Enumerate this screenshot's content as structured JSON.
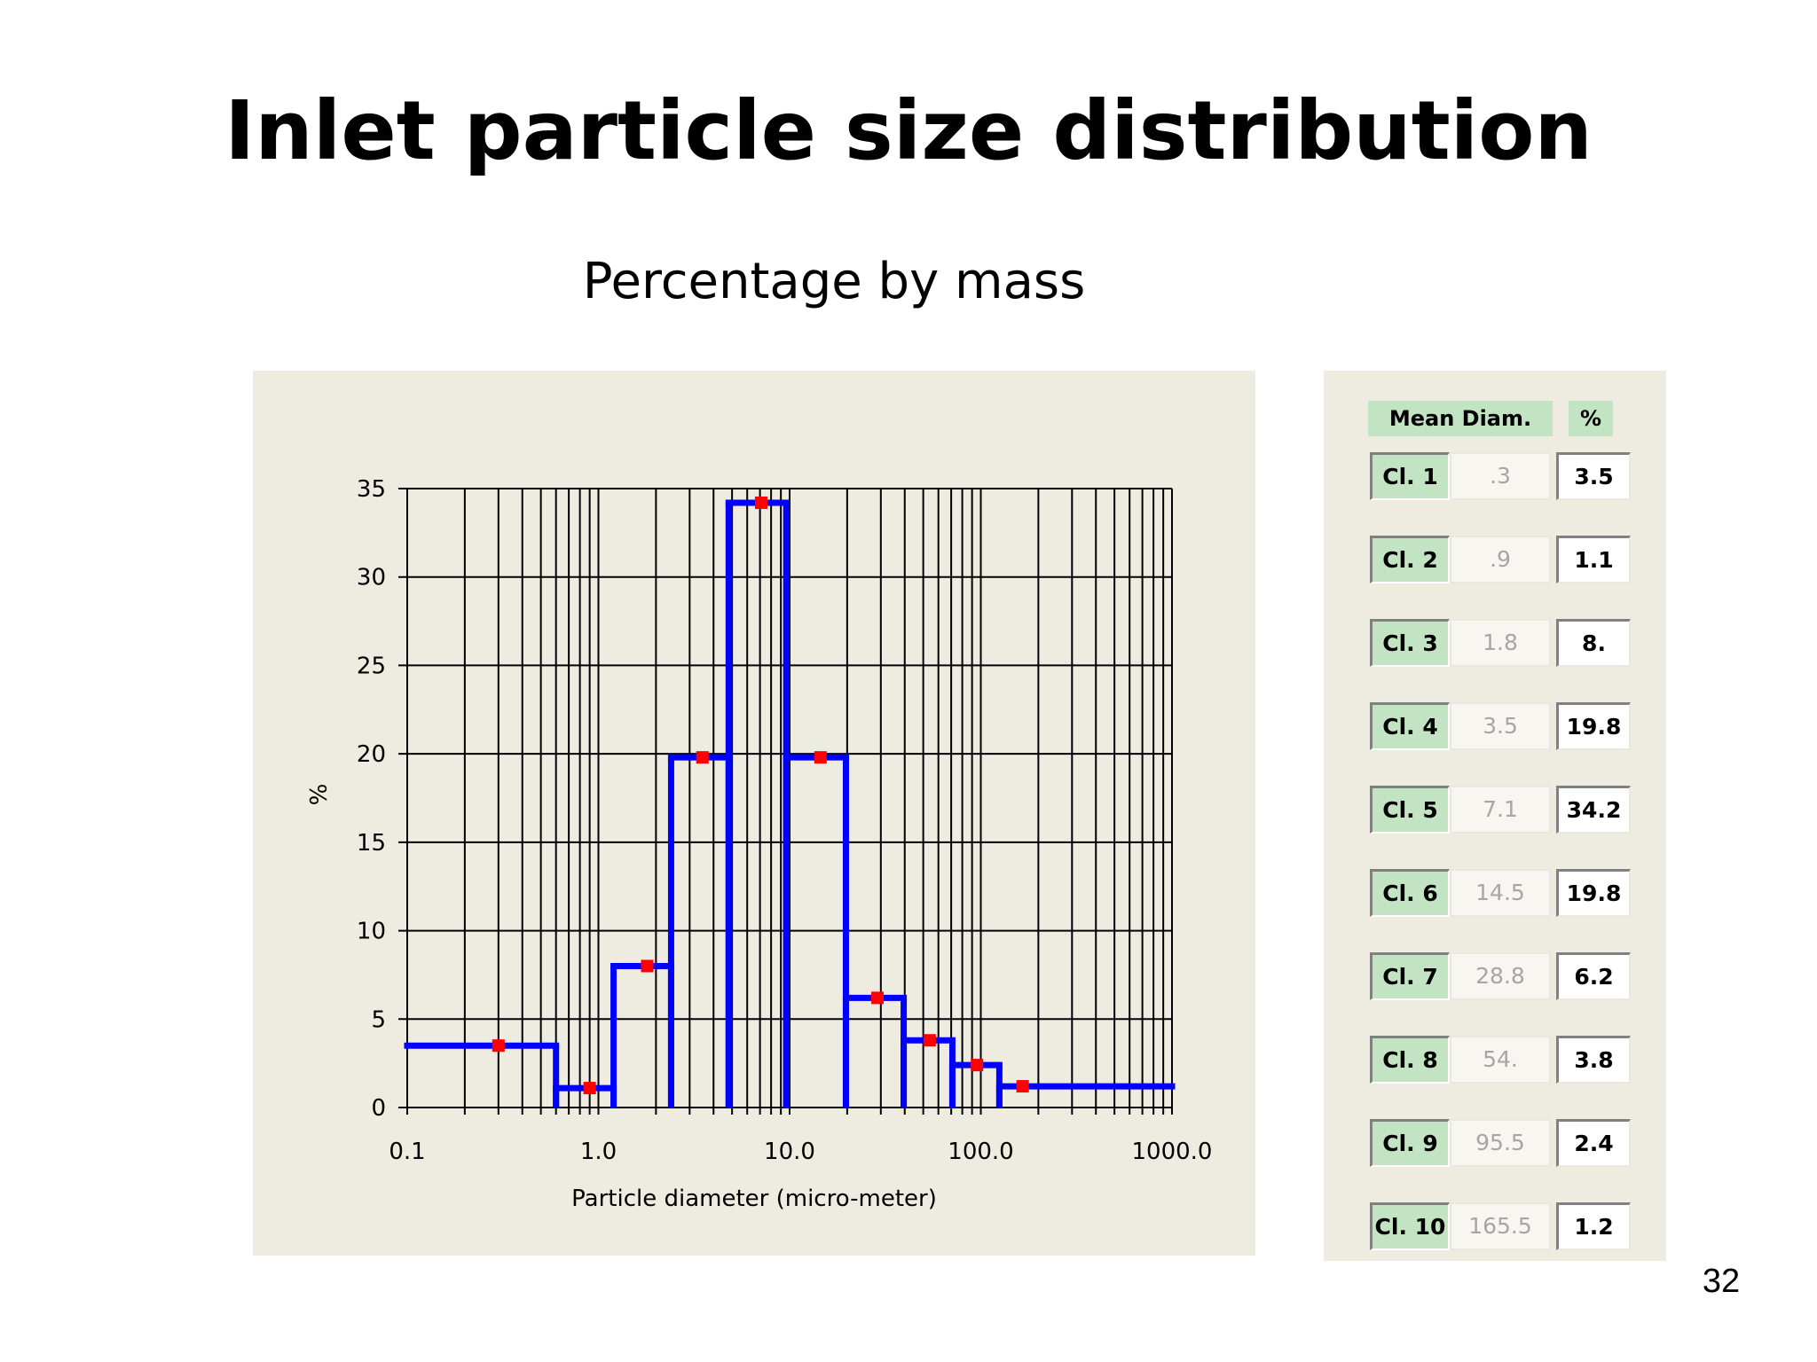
{
  "slide": {
    "title": "Inlet particle size distribution",
    "subtitle": "Percentage by mass",
    "page_number": "32"
  },
  "chart_data": {
    "type": "bar",
    "subtype": "histogram-step",
    "xlabel": "Particle diameter (micro-meter)",
    "ylabel": "%",
    "x_scale": "log",
    "xlim": [
      0.1,
      1000
    ],
    "ylim": [
      0,
      35
    ],
    "x_ticks": [
      "0.1",
      "1.0",
      "10.0",
      "100.0",
      "1000.0"
    ],
    "y_ticks": [
      "0",
      "5",
      "10",
      "15",
      "20",
      "25",
      "30",
      "35"
    ],
    "grid": true,
    "bins": [
      {
        "from": 0.1,
        "to": 0.6,
        "value": 3.5
      },
      {
        "from": 0.6,
        "to": 1.2,
        "value": 1.1
      },
      {
        "from": 1.2,
        "to": 2.4,
        "value": 8.0
      },
      {
        "from": 2.4,
        "to": 4.8,
        "value": 19.8
      },
      {
        "from": 4.8,
        "to": 9.6,
        "value": 34.2
      },
      {
        "from": 9.6,
        "to": 19.7,
        "value": 19.8
      },
      {
        "from": 19.7,
        "to": 39.5,
        "value": 6.2
      },
      {
        "from": 39.5,
        "to": 71,
        "value": 3.8
      },
      {
        "from": 71,
        "to": 125,
        "value": 2.4
      },
      {
        "from": 125,
        "to": 1000,
        "value": 1.2
      }
    ],
    "points": [
      {
        "x": 0.3,
        "y": 3.5
      },
      {
        "x": 0.9,
        "y": 1.1
      },
      {
        "x": 1.8,
        "y": 8.0
      },
      {
        "x": 3.5,
        "y": 19.8
      },
      {
        "x": 7.1,
        "y": 34.2
      },
      {
        "x": 14.5,
        "y": 19.8
      },
      {
        "x": 28.8,
        "y": 6.2
      },
      {
        "x": 54,
        "y": 3.8
      },
      {
        "x": 95.5,
        "y": 2.4
      },
      {
        "x": 165.5,
        "y": 1.2
      }
    ],
    "colors": {
      "bars": "#0000ff",
      "points": "#ff0000",
      "grid": "#000000"
    }
  },
  "table": {
    "header_diam": "Mean Diam.",
    "header_pct": "%",
    "rows": [
      {
        "label": "Cl. 1",
        "diam": ".3",
        "pct": "3.5"
      },
      {
        "label": "Cl. 2",
        "diam": ".9",
        "pct": "1.1"
      },
      {
        "label": "Cl. 3",
        "diam": "1.8",
        "pct": "8."
      },
      {
        "label": "Cl. 4",
        "diam": "3.5",
        "pct": "19.8"
      },
      {
        "label": "Cl. 5",
        "diam": "7.1",
        "pct": "34.2"
      },
      {
        "label": "Cl. 6",
        "diam": "14.5",
        "pct": "19.8"
      },
      {
        "label": "Cl. 7",
        "diam": "28.8",
        "pct": "6.2"
      },
      {
        "label": "Cl. 8",
        "diam": "54.",
        "pct": "3.8"
      },
      {
        "label": "Cl. 9",
        "diam": "95.5",
        "pct": "2.4"
      },
      {
        "label": "Cl. 10",
        "diam": "165.5",
        "pct": "1.2"
      }
    ]
  }
}
